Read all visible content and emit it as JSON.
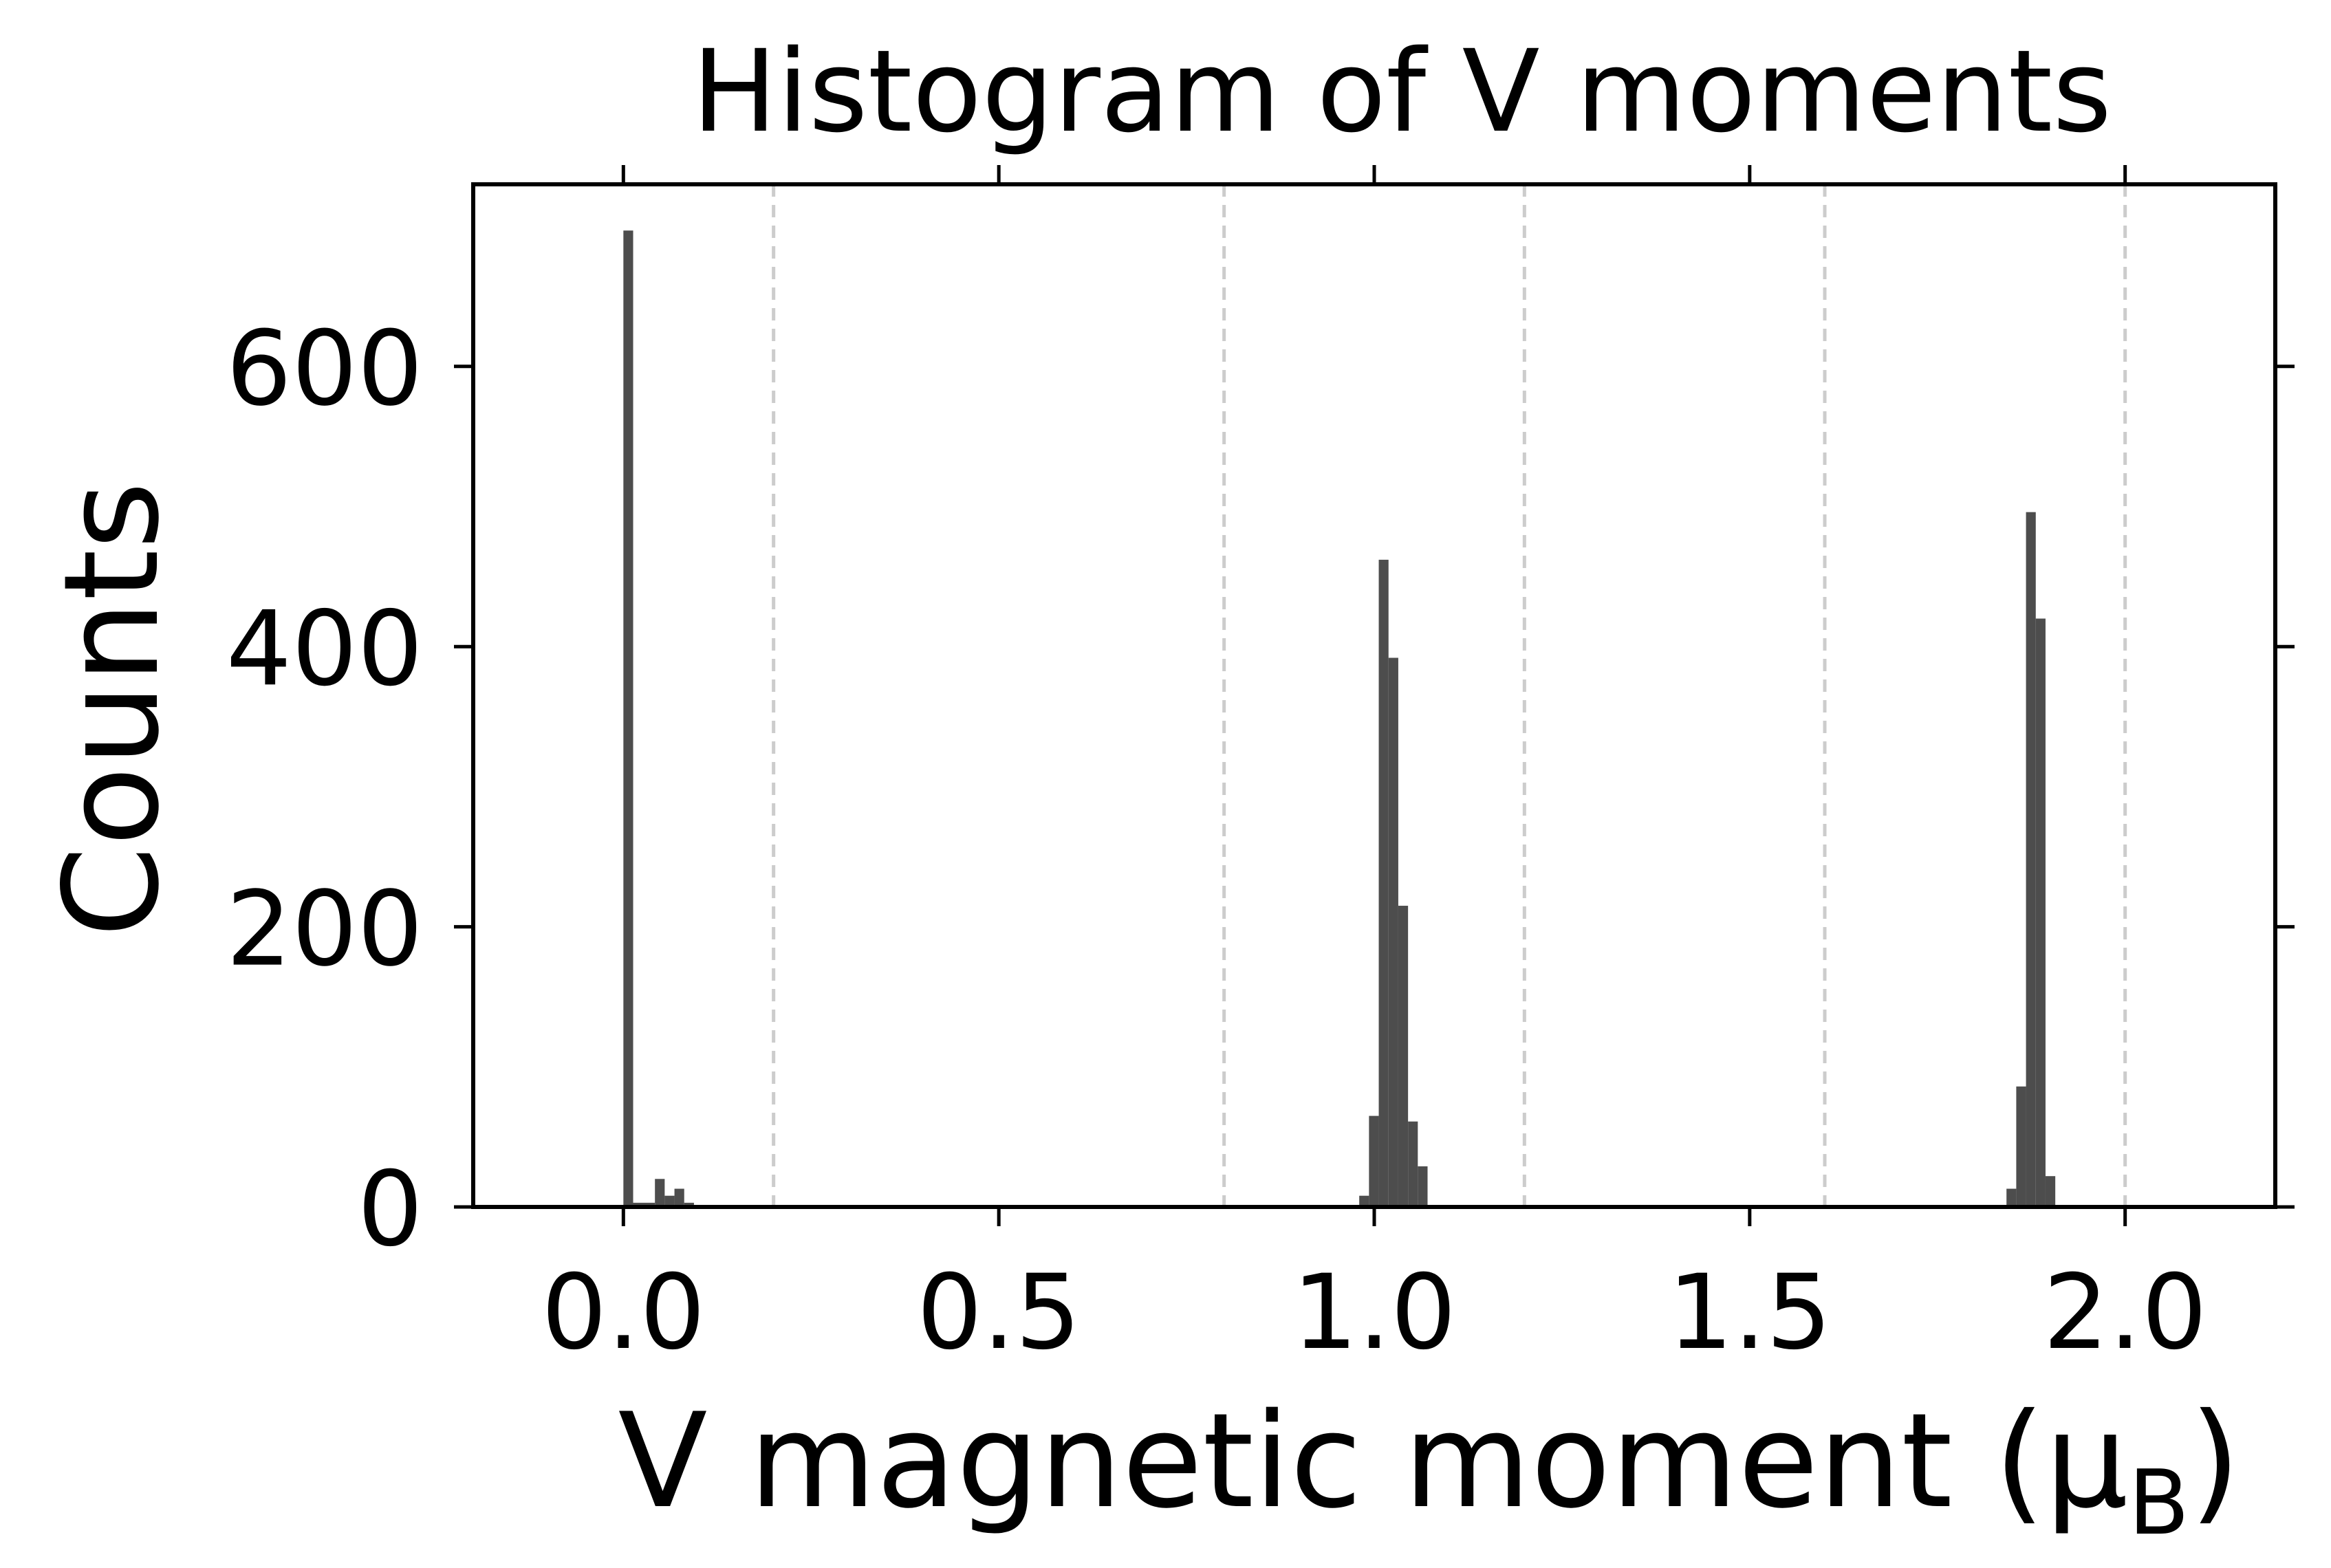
{
  "chart_data": {
    "type": "bar",
    "title": "Histogram of V moments",
    "xlabel_main": "V magnetic moment (μ",
    "xlabel_sub": "B",
    "xlabel_close": ")",
    "ylabel": "Counts",
    "xlim": [
      -0.2,
      2.2
    ],
    "ylim": [
      0,
      730
    ],
    "xticks": [
      {
        "value": 0.0,
        "label": "0.0"
      },
      {
        "value": 0.5,
        "label": "0.5"
      },
      {
        "value": 1.0,
        "label": "1.0"
      },
      {
        "value": 1.5,
        "label": "1.5"
      },
      {
        "value": 2.0,
        "label": "2.0"
      }
    ],
    "yticks": [
      {
        "value": 0,
        "label": "0"
      },
      {
        "value": 200,
        "label": "200"
      },
      {
        "value": 400,
        "label": "400"
      },
      {
        "value": 600,
        "label": "600"
      }
    ],
    "vlines": [
      0.2,
      0.8,
      1.2,
      1.6,
      2.0
    ],
    "grid": false,
    "bar_color": "#4d4d4d",
    "vline_color": "#cccccc",
    "bins": [
      {
        "x0": 0.0,
        "x1": 0.013,
        "count": 697
      },
      {
        "x0": 0.013,
        "x1": 0.042,
        "count": 3
      },
      {
        "x0": 0.042,
        "x1": 0.055,
        "count": 20
      },
      {
        "x0": 0.055,
        "x1": 0.068,
        "count": 8
      },
      {
        "x0": 0.068,
        "x1": 0.081,
        "count": 13
      },
      {
        "x0": 0.081,
        "x1": 0.094,
        "count": 3
      },
      {
        "x0": 0.98,
        "x1": 0.993,
        "count": 8
      },
      {
        "x0": 0.993,
        "x1": 1.006,
        "count": 65
      },
      {
        "x0": 1.006,
        "x1": 1.019,
        "count": 462
      },
      {
        "x0": 1.019,
        "x1": 1.032,
        "count": 392
      },
      {
        "x0": 1.032,
        "x1": 1.045,
        "count": 215
      },
      {
        "x0": 1.045,
        "x1": 1.058,
        "count": 61
      },
      {
        "x0": 1.058,
        "x1": 1.071,
        "count": 29
      },
      {
        "x0": 1.842,
        "x1": 1.855,
        "count": 13
      },
      {
        "x0": 1.855,
        "x1": 1.868,
        "count": 86
      },
      {
        "x0": 1.868,
        "x1": 1.881,
        "count": 496
      },
      {
        "x0": 1.881,
        "x1": 1.894,
        "count": 420
      },
      {
        "x0": 1.894,
        "x1": 1.907,
        "count": 22
      }
    ]
  }
}
